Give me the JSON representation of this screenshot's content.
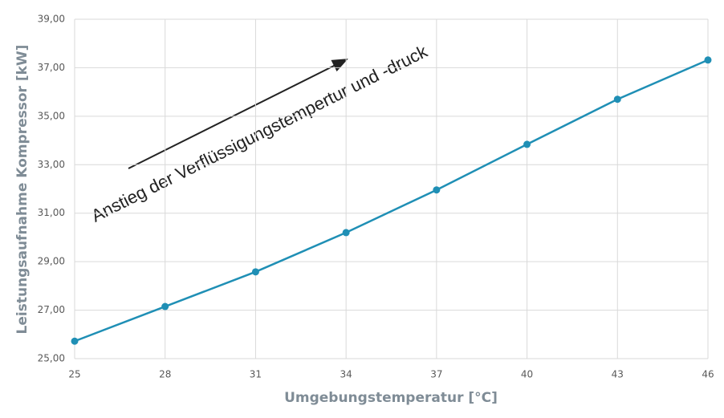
{
  "chart_data": {
    "type": "line",
    "x_label": "Umgebungstemperatur [°C]",
    "y_label": "Leistungsaufnahme Kompressor  [kW]",
    "annotation": "Anstieg der Verflüssigungstempertur und -druck",
    "x": [
      25,
      28,
      31,
      34,
      37,
      40,
      43,
      46
    ],
    "series": [
      {
        "color": "#1f8fb5",
        "values": [
          25.72,
          27.15,
          28.58,
          30.2,
          31.96,
          33.84,
          35.7,
          37.32
        ]
      }
    ],
    "xlim": [
      25,
      46
    ],
    "xticks": [
      25,
      28,
      31,
      34,
      37,
      40,
      43,
      46
    ],
    "ylim": [
      25,
      39
    ],
    "yticks": [
      {
        "value": 25,
        "label": "25,00"
      },
      {
        "value": 27,
        "label": "27,00"
      },
      {
        "value": 29,
        "label": "29,00"
      },
      {
        "value": 31,
        "label": "31,00"
      },
      {
        "value": 33,
        "label": "33,00"
      },
      {
        "value": 35,
        "label": "35,00"
      },
      {
        "value": 37,
        "label": "37,00"
      },
      {
        "value": 39,
        "label": "39,00"
      }
    ],
    "grid": true
  }
}
